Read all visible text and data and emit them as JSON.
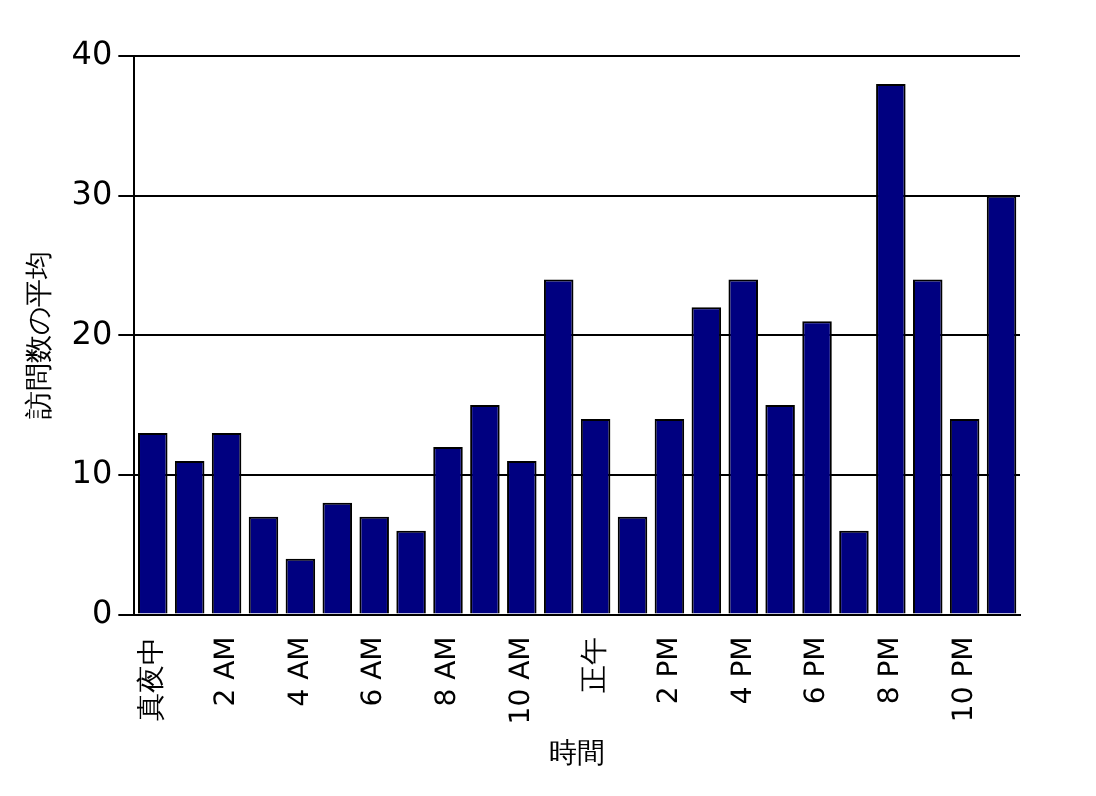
{
  "chart_data": {
    "type": "bar",
    "xlabel": "時間",
    "ylabel": "訪問数の平均",
    "categories": [
      "真夜中",
      null,
      "2 AM",
      null,
      "4 AM",
      null,
      "6 AM",
      null,
      "8 AM",
      null,
      "10 AM",
      null,
      "正午",
      null,
      "2 PM",
      null,
      "4 PM",
      null,
      "6 PM",
      null,
      "8 PM",
      null,
      "10 PM",
      null
    ],
    "values": [
      13,
      11,
      13,
      7,
      4,
      8,
      7,
      6,
      12,
      15,
      11,
      24,
      14,
      7,
      14,
      22,
      24,
      15,
      21,
      6,
      38,
      24,
      14,
      30
    ],
    "color": "#000080",
    "ylim": [
      0,
      40
    ],
    "yticks": [
      0,
      10,
      20,
      30,
      40
    ],
    "grid": "y",
    "legend": false
  }
}
